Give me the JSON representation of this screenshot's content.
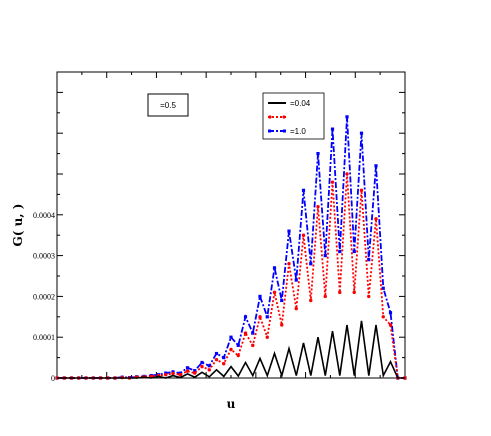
{
  "chart_data": {
    "type": "line",
    "xlabel": "u",
    "ylabel": "G( u, )",
    "ylim": [
      0,
      0.00075
    ],
    "yticks": [
      {
        "value": 0,
        "label": "0"
      },
      {
        "value": 0.0001,
        "label": "0.0001"
      },
      {
        "value": 0.0002,
        "label": "0.0002"
      },
      {
        "value": 0.0003,
        "label": "0.0003"
      },
      {
        "value": 0.0004,
        "label": "0.0004"
      }
    ],
    "annotation": "=0.5",
    "grid": false,
    "legend_position": "top-right",
    "x": [
      0,
      1,
      2,
      3,
      4,
      5,
      6,
      7,
      8,
      9,
      10,
      11,
      12,
      13,
      14,
      15,
      16,
      17,
      18,
      19,
      20,
      21,
      22,
      23,
      24,
      25,
      26,
      27,
      28,
      29,
      30,
      31,
      32,
      33,
      34,
      35,
      36,
      37,
      38,
      39,
      40,
      41,
      42,
      43,
      44,
      45,
      46,
      47,
      48
    ],
    "series": [
      {
        "name": "=0.04",
        "color": "#000000",
        "line": "solid",
        "marker": "none",
        "values": [
          0,
          0,
          0,
          0,
          0,
          0,
          0,
          0,
          0,
          0,
          0,
          0,
          2e-06,
          0,
          4e-06,
          0,
          6e-06,
          1e-06,
          1e-05,
          2e-06,
          1.4e-05,
          3e-06,
          2e-05,
          4e-06,
          2.8e-05,
          5e-06,
          3.8e-05,
          6e-06,
          4.8e-05,
          6e-06,
          6e-05,
          6e-06,
          7.2e-05,
          6e-06,
          8.6e-05,
          6e-06,
          0.0001,
          6e-06,
          0.000115,
          6e-06,
          0.00013,
          6e-06,
          0.00014,
          6e-06,
          0.00013,
          6e-06,
          4e-05,
          0,
          0
        ]
      },
      {
        "name": "",
        "color": "#ff0000",
        "line": "dotted",
        "marker": "circle",
        "values": [
          0,
          0,
          0,
          0,
          0,
          0,
          0,
          0,
          0,
          1e-06,
          0,
          2e-06,
          3e-06,
          4e-06,
          6e-06,
          8e-06,
          1.1e-05,
          8e-06,
          1.7e-05,
          1.2e-05,
          2.8e-05,
          2e-05,
          4.5e-05,
          3.5e-05,
          7e-05,
          5.5e-05,
          0.00011,
          8e-05,
          0.00015,
          0.0001,
          0.00021,
          0.00013,
          0.00028,
          0.00017,
          0.00035,
          0.00019,
          0.00042,
          0.0002,
          0.00048,
          0.00021,
          0.0005,
          0.00021,
          0.00046,
          0.0002,
          0.00039,
          0.00015,
          0.00013,
          0,
          0
        ]
      },
      {
        "name": "=1.0",
        "color": "#0000ff",
        "line": "dashdot",
        "marker": "square",
        "values": [
          0,
          0,
          0,
          0,
          0,
          0,
          0,
          0,
          0,
          2e-06,
          1e-06,
          3e-06,
          4e-06,
          6e-06,
          8e-06,
          1.2e-05,
          1.5e-05,
          1.2e-05,
          2.5e-05,
          1.8e-05,
          3.8e-05,
          3e-05,
          6e-05,
          5e-05,
          0.0001,
          8e-05,
          0.00015,
          0.00011,
          0.0002,
          0.00015,
          0.00027,
          0.00019,
          0.00036,
          0.00024,
          0.00046,
          0.00028,
          0.00055,
          0.0003,
          0.00061,
          0.00031,
          0.00064,
          0.00031,
          0.0006,
          0.00029,
          0.00052,
          0.00022,
          0.00016,
          0,
          0
        ]
      }
    ]
  }
}
